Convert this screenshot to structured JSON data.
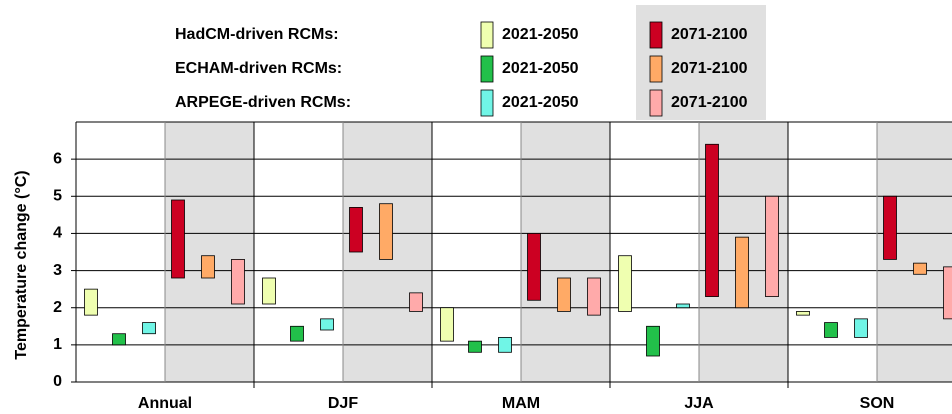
{
  "chart_data": {
    "type": "floating-bar",
    "y_label": "Temperature change (°C)",
    "categories": [
      "Annual",
      "DJF",
      "MAM",
      "JJA",
      "SON"
    ],
    "ylim": [
      0,
      7
    ],
    "yticks": [
      0,
      1,
      2,
      3,
      4,
      5,
      6
    ],
    "grid": true,
    "shade_color": "#e0e0e0",
    "series": [
      {
        "name": "HadCM-driven RCMs:",
        "periods": [
          {
            "name": "2021-2050",
            "color": "#efffb0",
            "low": [
              1.8,
              2.1,
              1.1,
              1.9,
              1.8
            ],
            "high": [
              2.5,
              2.8,
              2.0,
              3.4,
              1.9
            ]
          },
          {
            "name": "2071-2100",
            "color": "#cc0022",
            "low": [
              2.8,
              3.5,
              2.2,
              2.3,
              3.3
            ],
            "high": [
              4.9,
              4.7,
              4.0,
              6.4,
              5.0
            ]
          }
        ]
      },
      {
        "name": "ECHAM-driven RCMs:",
        "periods": [
          {
            "name": "2021-2050",
            "color": "#22c04a",
            "low": [
              1.0,
              1.1,
              0.8,
              0.7,
              1.2
            ],
            "high": [
              1.3,
              1.5,
              1.1,
              1.5,
              1.6
            ]
          },
          {
            "name": "2071-2100",
            "color": "#ffaa66",
            "low": [
              2.8,
              3.3,
              1.9,
              2.0,
              2.9
            ],
            "high": [
              3.4,
              4.8,
              2.8,
              3.9,
              3.2
            ]
          }
        ]
      },
      {
        "name": "ARPEGE-driven RCMs:",
        "periods": [
          {
            "name": "2021-2050",
            "color": "#70f5e6",
            "low": [
              1.3,
              1.4,
              0.8,
              2.0,
              1.2
            ],
            "high": [
              1.6,
              1.7,
              1.2,
              2.1,
              1.7
            ]
          },
          {
            "name": "2071-2100",
            "color": "#ffaaaa",
            "low": [
              2.1,
              1.9,
              1.8,
              2.3,
              1.7
            ],
            "high": [
              3.3,
              2.4,
              2.8,
              5.0,
              3.1
            ]
          }
        ]
      }
    ]
  }
}
